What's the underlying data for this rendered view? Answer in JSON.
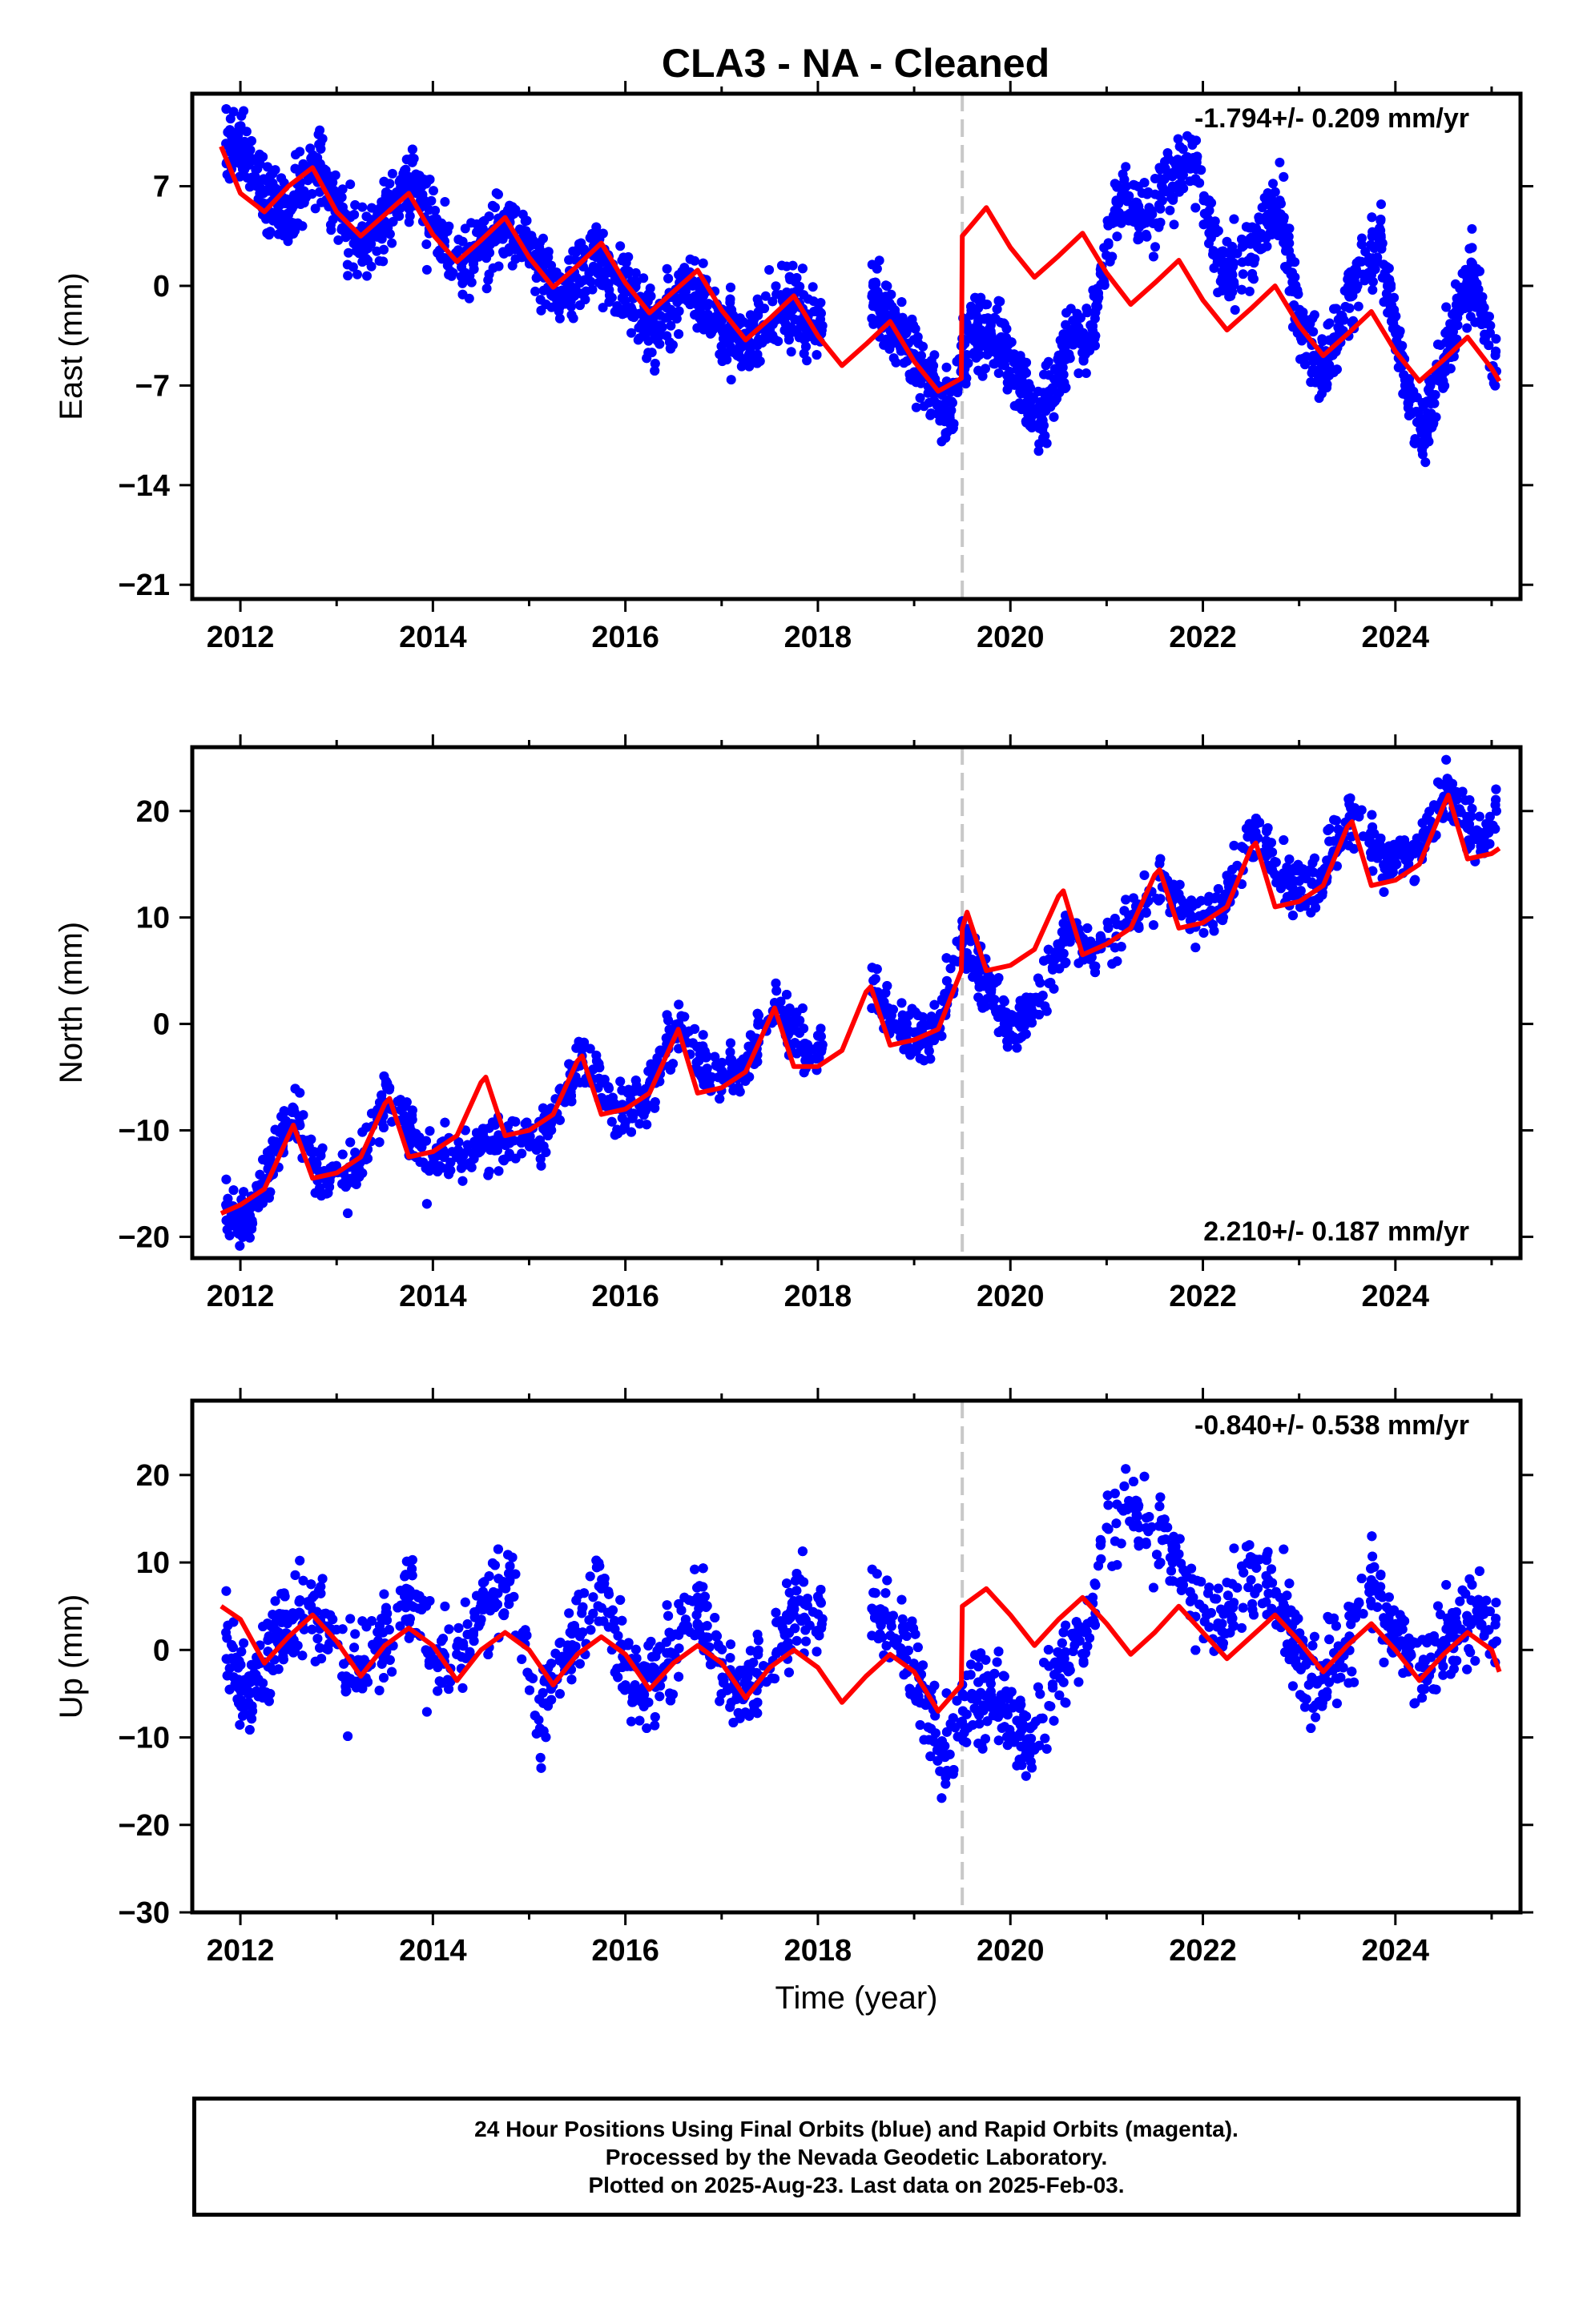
{
  "title": "CLA3  - NA - Cleaned",
  "colors": {
    "final_orbits": "#0000ff",
    "model": "#ff0000",
    "equipment_change": "#c8c8c8"
  },
  "chart_data": [
    {
      "type": "scatter",
      "component": "East",
      "ylabel": "East (mm)",
      "xlabel": "",
      "xlim": [
        2011.5,
        2025.3
      ],
      "ylim": [
        -22,
        13.5
      ],
      "yticks": [
        7,
        0,
        -7,
        -14,
        -21
      ],
      "xticks": [
        2012,
        2014,
        2016,
        2018,
        2020,
        2022,
        2024
      ],
      "grid": false,
      "rate_label": "-1.794+/- 0.209 mm/yr",
      "rate_position": "top-right",
      "equipment_change_x": 2019.5,
      "series": [
        {
          "role": "final-orbit-positions",
          "x": [
            2011.85,
            2012.0,
            2012.2,
            2012.5,
            2012.8,
            2013.0,
            2013.3,
            2013.6,
            2013.8,
            2014.1,
            2014.4,
            2014.7,
            2015.0,
            2015.3,
            2015.7,
            2016.0,
            2016.3,
            2016.7,
            2017.0,
            2017.3,
            2017.7,
            2017.9,
            2018.6,
            2018.9,
            2019.1,
            2019.35,
            2019.6,
            2019.9,
            2020.1,
            2020.3,
            2020.6,
            2020.85,
            2021.1,
            2021.4,
            2021.7,
            2021.9,
            2022.2,
            2022.5,
            2022.8,
            2023.0,
            2023.3,
            2023.6,
            2023.85,
            2024.1,
            2024.3,
            2024.6,
            2024.8,
            2025.05
          ],
          "y": [
            10,
            11,
            7,
            5,
            9,
            5,
            3,
            6,
            7,
            3,
            2,
            4,
            3,
            -1,
            2,
            0,
            -3,
            0,
            -3,
            -4,
            -1,
            -3,
            -1,
            -4,
            -6,
            -9,
            -3,
            -4,
            -7,
            -10,
            -4,
            -3,
            6,
            5,
            8,
            9,
            1,
            2,
            6,
            -3,
            -6,
            1,
            3,
            -7,
            -10,
            -3,
            1,
            -6
          ]
        },
        {
          "role": "model-fit",
          "x": [
            2011.8,
            2012.0,
            2012.25,
            2012.5,
            2012.75,
            2013.0,
            2013.25,
            2013.5,
            2013.75,
            2014.0,
            2014.25,
            2014.5,
            2014.75,
            2015.0,
            2015.25,
            2015.5,
            2015.75,
            2016.0,
            2016.25,
            2016.5,
            2016.75,
            2017.0,
            2017.25,
            2017.5,
            2017.75,
            2018.0,
            2018.25,
            2018.5,
            2018.75,
            2019.0,
            2019.25,
            2019.49,
            2019.5,
            2019.75,
            2020.0,
            2020.25,
            2020.5,
            2020.75,
            2021.0,
            2021.25,
            2021.5,
            2021.75,
            2022.0,
            2022.25,
            2022.5,
            2022.75,
            2023.0,
            2023.25,
            2023.5,
            2023.75,
            2024.0,
            2024.25,
            2024.5,
            2024.75,
            2025.0,
            2025.08
          ],
          "y": [
            9.8,
            6.5,
            5.2,
            7.0,
            8.3,
            5.2,
            3.5,
            5.0,
            6.5,
            3.6,
            1.7,
            3.2,
            4.8,
            2.0,
            -0.1,
            1.4,
            3.0,
            0.2,
            -1.9,
            -0.4,
            1.1,
            -1.7,
            -3.8,
            -2.3,
            -0.7,
            -3.5,
            -5.6,
            -4.1,
            -2.5,
            -5.3,
            -7.4,
            -6.5,
            3.5,
            5.5,
            2.7,
            0.6,
            2.1,
            3.7,
            0.9,
            -1.3,
            0.2,
            1.8,
            -1.0,
            -3.1,
            -1.6,
            0.0,
            -2.8,
            -4.9,
            -3.4,
            -1.8,
            -4.6,
            -6.7,
            -5.2,
            -3.6,
            -5.8,
            -6.7
          ]
        }
      ]
    },
    {
      "type": "scatter",
      "component": "North",
      "ylabel": "North (mm)",
      "xlabel": "",
      "xlim": [
        2011.5,
        2025.3
      ],
      "ylim": [
        -22,
        26
      ],
      "yticks": [
        20,
        10,
        0,
        -10,
        -20
      ],
      "xticks": [
        2012,
        2014,
        2016,
        2018,
        2020,
        2022,
        2024
      ],
      "grid": false,
      "rate_label": "2.210+/- 0.187 mm/yr",
      "rate_position": "bottom-right",
      "equipment_change_x": 2019.5,
      "series": [
        {
          "role": "final-orbit-positions",
          "x": [
            2011.85,
            2012.1,
            2012.55,
            2012.9,
            2013.2,
            2013.55,
            2013.9,
            2014.2,
            2014.9,
            2015.2,
            2015.55,
            2015.9,
            2016.2,
            2016.55,
            2016.9,
            2017.2,
            2017.55,
            2017.9,
            2018.6,
            2018.9,
            2019.2,
            2019.5,
            2019.8,
            2020.0,
            2020.3,
            2020.6,
            2020.9,
            2021.2,
            2021.55,
            2021.9,
            2022.2,
            2022.55,
            2022.9,
            2023.2,
            2023.55,
            2023.9,
            2024.2,
            2024.55,
            2024.9,
            2025.05
          ],
          "y": [
            -17,
            -18,
            -8,
            -15,
            -14,
            -6,
            -13,
            -12,
            -11,
            -10,
            -3,
            -8,
            -7,
            0,
            -5,
            -5,
            2,
            -3,
            3,
            -1,
            -1,
            8,
            3,
            -1,
            2,
            9,
            7,
            9,
            14,
            10,
            11,
            18,
            13,
            13,
            20,
            15,
            16,
            22,
            17,
            20
          ]
        },
        {
          "role": "model-fit",
          "x": [
            2011.8,
            2012.0,
            2012.25,
            2012.5,
            2012.55,
            2012.75,
            2013.0,
            2013.25,
            2013.5,
            2013.55,
            2013.75,
            2014.0,
            2014.25,
            2014.5,
            2014.55,
            2014.75,
            2015.0,
            2015.25,
            2015.5,
            2015.55,
            2015.75,
            2016.0,
            2016.25,
            2016.5,
            2016.55,
            2016.75,
            2017.0,
            2017.25,
            2017.5,
            2017.55,
            2017.75,
            2018.0,
            2018.25,
            2018.5,
            2018.55,
            2018.75,
            2019.0,
            2019.25,
            2019.49,
            2019.5,
            2019.55,
            2019.75,
            2020.0,
            2020.25,
            2020.5,
            2020.55,
            2020.75,
            2021.0,
            2021.25,
            2021.5,
            2021.55,
            2021.75,
            2022.0,
            2022.25,
            2022.5,
            2022.55,
            2022.75,
            2023.0,
            2023.25,
            2023.5,
            2023.55,
            2023.75,
            2024.0,
            2024.25,
            2024.5,
            2024.55,
            2024.75,
            2025.0,
            2025.08
          ],
          "y": [
            -17.8,
            -17.0,
            -15.5,
            -10.5,
            -9.5,
            -14.5,
            -14.0,
            -12.5,
            -7.5,
            -7.0,
            -12.5,
            -12.0,
            -10.5,
            -5.5,
            -5.0,
            -10.5,
            -10.0,
            -8.5,
            -3.5,
            -3.0,
            -8.5,
            -8.0,
            -6.5,
            -1.5,
            -0.5,
            -6.5,
            -6.0,
            -4.5,
            0.5,
            1.5,
            -4.0,
            -4.0,
            -2.5,
            3.0,
            3.5,
            -2.0,
            -1.5,
            -0.5,
            5.0,
            9.0,
            10.5,
            5.0,
            5.5,
            7.0,
            12.0,
            12.5,
            6.5,
            7.5,
            9.0,
            14.0,
            14.5,
            9.0,
            9.5,
            11.0,
            16.5,
            17.0,
            11.0,
            11.5,
            13.0,
            18.5,
            19.0,
            13.0,
            13.5,
            15.0,
            20.5,
            21.5,
            15.5,
            16.0,
            16.5
          ]
        }
      ]
    },
    {
      "type": "scatter",
      "component": "Up",
      "ylabel": "Up (mm)",
      "xlabel": "Time (year)",
      "xlim": [
        2011.5,
        2025.3
      ],
      "ylim": [
        -30,
        28.5
      ],
      "yticks": [
        20,
        10,
        0,
        -10,
        -20,
        -30
      ],
      "xticks": [
        2012,
        2014,
        2016,
        2018,
        2020,
        2022,
        2024
      ],
      "grid": false,
      "rate_label": "-0.840+/- 0.538 mm/yr",
      "rate_position": "top-right",
      "equipment_change_x": 2019.5,
      "series": [
        {
          "role": "final-orbit-positions",
          "x": [
            2011.85,
            2012.1,
            2012.4,
            2012.75,
            2013.1,
            2013.4,
            2013.75,
            2014.05,
            2014.8,
            2015.1,
            2015.4,
            2015.75,
            2016.1,
            2016.4,
            2016.75,
            2017.1,
            2017.4,
            2017.75,
            2018.7,
            2019.0,
            2019.3,
            2019.6,
            2019.9,
            2020.2,
            2020.5,
            2020.8,
            2021.0,
            2021.3,
            2021.6,
            2021.9,
            2022.2,
            2022.5,
            2022.8,
            2023.1,
            2023.4,
            2023.75,
            2024.0,
            2024.3,
            2024.6,
            2024.9,
            2025.05
          ],
          "y": [
            2,
            -5,
            2,
            6,
            -3,
            0,
            6,
            -2,
            8,
            -8,
            0,
            7,
            -4,
            -2,
            6,
            -6,
            -3,
            4,
            4,
            -2,
            -12,
            -5,
            -6,
            -12,
            -2,
            3,
            14,
            16,
            14,
            6,
            3,
            8,
            6,
            -4,
            -2,
            8,
            1,
            -2,
            2,
            5,
            1
          ]
        },
        {
          "role": "model-fit",
          "x": [
            2011.8,
            2012.0,
            2012.25,
            2012.5,
            2012.75,
            2013.0,
            2013.25,
            2013.5,
            2013.75,
            2014.0,
            2014.25,
            2014.5,
            2014.75,
            2015.0,
            2015.25,
            2015.5,
            2015.75,
            2016.0,
            2016.25,
            2016.5,
            2016.75,
            2017.0,
            2017.25,
            2017.5,
            2017.75,
            2018.0,
            2018.25,
            2018.5,
            2018.75,
            2019.0,
            2019.25,
            2019.49,
            2019.5,
            2019.75,
            2020.0,
            2020.25,
            2020.5,
            2020.75,
            2021.0,
            2021.25,
            2021.5,
            2021.75,
            2022.0,
            2022.25,
            2022.5,
            2022.75,
            2023.0,
            2023.25,
            2023.5,
            2023.75,
            2024.0,
            2024.25,
            2024.5,
            2024.75,
            2025.0,
            2025.08
          ],
          "y": [
            5.0,
            3.5,
            -1.5,
            1.5,
            4.0,
            1.0,
            -3.0,
            0.5,
            2.5,
            0.5,
            -3.5,
            0.0,
            2.0,
            0.0,
            -4.0,
            -0.5,
            1.5,
            -0.5,
            -4.5,
            -1.5,
            0.5,
            -1.5,
            -5.5,
            -2.0,
            0.0,
            -2.0,
            -6.0,
            -3.0,
            -0.5,
            -2.5,
            -7.0,
            -4.0,
            5.0,
            7.0,
            4.0,
            0.5,
            3.5,
            6.0,
            3.0,
            -0.5,
            2.0,
            5.0,
            2.0,
            -1.0,
            1.5,
            4.0,
            1.0,
            -2.5,
            0.5,
            3.0,
            0.0,
            -3.5,
            -0.5,
            2.0,
            0.0,
            -2.5
          ]
        }
      ]
    }
  ],
  "caption": {
    "line1": "24 Hour Positions Using Final Orbits (blue) and Rapid Orbits (magenta).",
    "line2": "Processed by the Nevada Geodetic Laboratory.",
    "line3": "Plotted on 2025-Aug-23. Last data on 2025-Feb-03."
  }
}
